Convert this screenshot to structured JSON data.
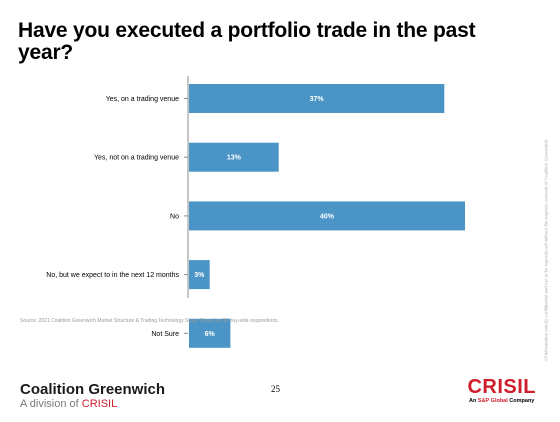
{
  "title": "Have you executed a portfolio trade in the past year?",
  "chart_data": {
    "type": "bar",
    "orientation": "horizontal",
    "categories": [
      "Yes, on a trading venue",
      "Yes, not on a trading venue",
      "No",
      "No, but we expect to in the next 12 months",
      "Not Sure"
    ],
    "values": [
      37,
      13,
      40,
      3,
      6
    ],
    "data_labels": [
      "37%",
      "13%",
      "40%",
      "3%",
      "6%"
    ],
    "xlim": [
      0,
      40
    ],
    "grid": false,
    "bar_color": "#4a95c5",
    "label_color": "#ffffff"
  },
  "source": "Source: 2021 Coalition Greenwich Market Structure & Trading Technology Study. Based on 30 buy-side respondents.",
  "side_note": "All information strictly confidential and not to be reproduced without the express consent of Coalition Greenwich.",
  "page_number": "25",
  "footer": {
    "brand_name": "Coalition Greenwich",
    "brand_sub_prefix": "A division of ",
    "brand_sub_accent": "CRISIL",
    "crisil_logo": "CRISIL",
    "crisil_sub_prefix": "An ",
    "crisil_sub_accent": "S&P Global",
    "crisil_sub_suffix": " Company"
  }
}
